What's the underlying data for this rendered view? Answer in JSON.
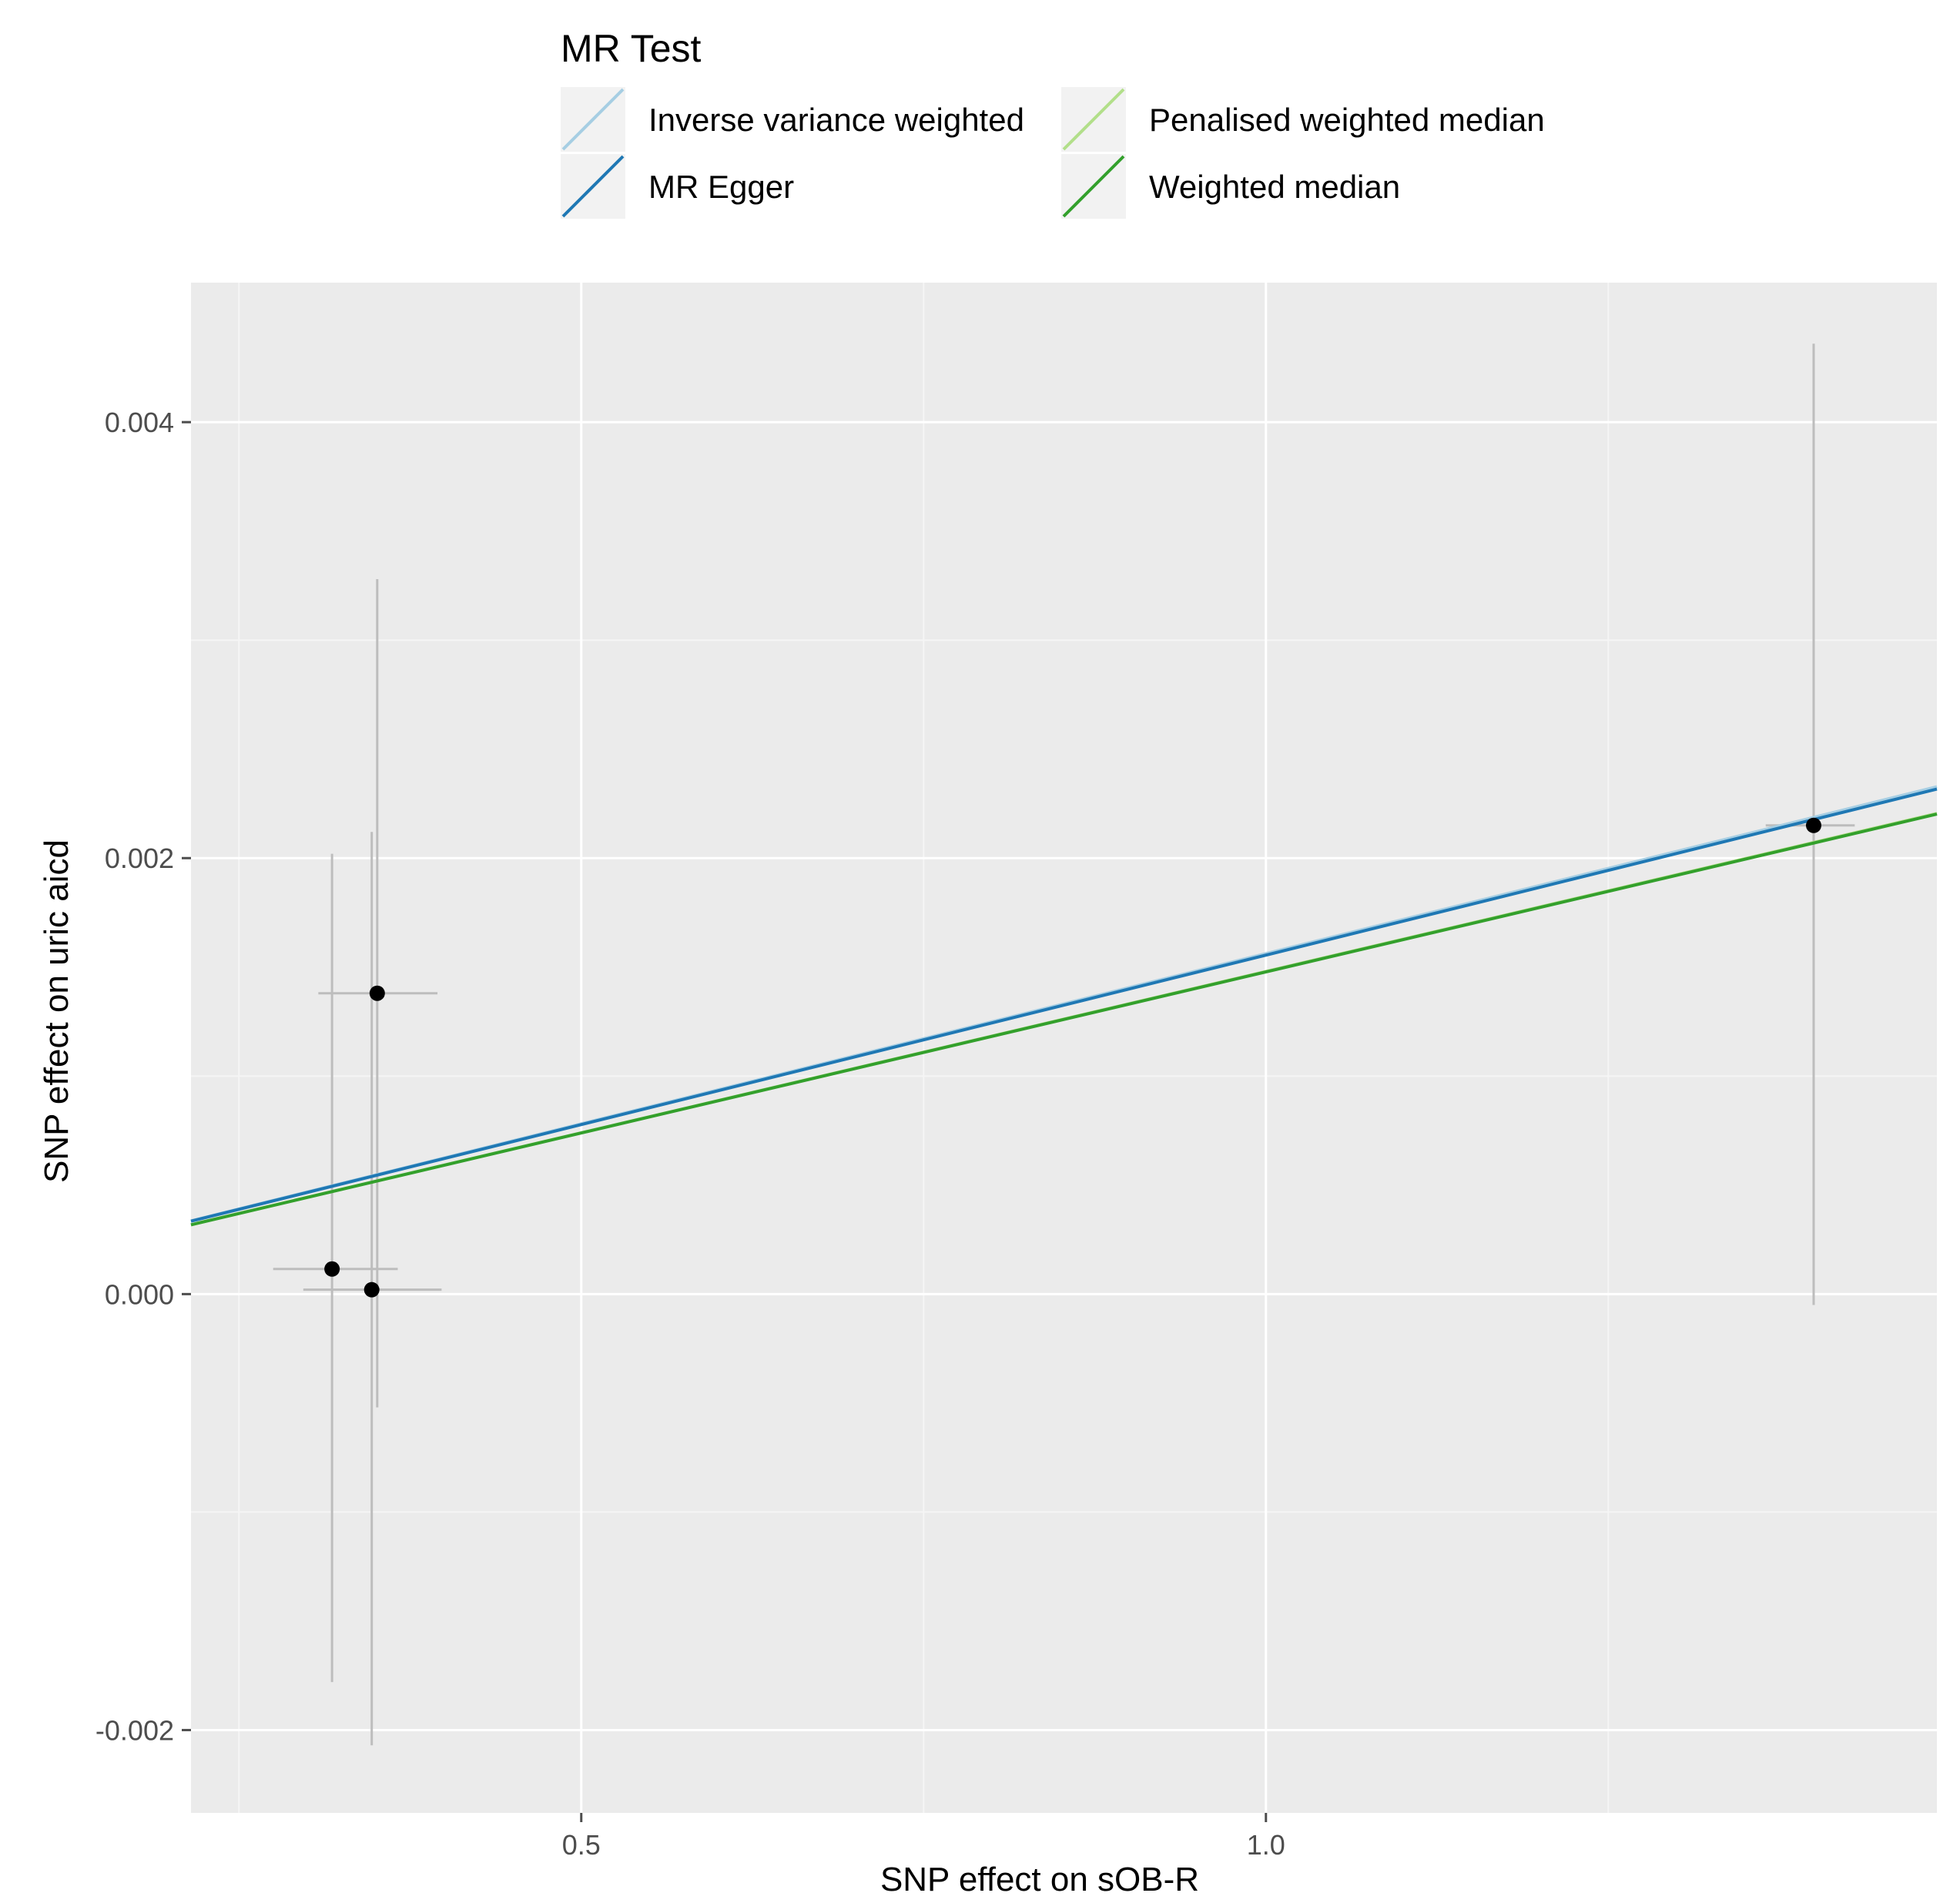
{
  "chart_data": {
    "type": "scatter",
    "title": "",
    "xlabel": "SNP effect  on sOB-R",
    "ylabel": "SNP effect on uric aicd",
    "xlim": [
      0.215,
      1.49
    ],
    "ylim": [
      -0.00238,
      0.00464
    ],
    "x_ticks": [
      0.5,
      1.0
    ],
    "x_tick_labels": [
      "0.5",
      "1.0"
    ],
    "y_ticks": [
      -0.002,
      0.0,
      0.002,
      0.004
    ],
    "y_tick_labels": [
      "-0.002",
      "0.000",
      "0.002",
      "0.004"
    ],
    "grid": true,
    "legend": {
      "title": "MR Test",
      "position": "top",
      "entries": [
        {
          "name": "Inverse variance weighted",
          "color": "#a6cee3"
        },
        {
          "name": "Penalised weighted median",
          "color": "#b2df8a"
        },
        {
          "name": "MR Egger",
          "color": "#1f78b4"
        },
        {
          "name": "Weighted median",
          "color": "#33a02c"
        }
      ]
    },
    "points": [
      {
        "x": 0.318,
        "y": 0.000115,
        "x_low": 0.275,
        "x_high": 0.366,
        "y_low": -0.00178,
        "y_high": 0.00202
      },
      {
        "x": 0.347,
        "y": 2e-05,
        "x_low": 0.297,
        "x_high": 0.398,
        "y_low": -0.00207,
        "y_high": 0.00212
      },
      {
        "x": 0.351,
        "y": 0.00138,
        "x_low": 0.308,
        "x_high": 0.395,
        "y_low": -0.00052,
        "y_high": 0.00328
      },
      {
        "x": 1.4,
        "y": 0.00215,
        "x_low": 1.365,
        "x_high": 1.43,
        "y_low": -5e-05,
        "y_high": 0.00436
      }
    ],
    "series": [
      {
        "name": "Inverse variance weighted",
        "type": "line",
        "intercept": 0.0,
        "slope": 0.001562,
        "color": "#a6cee3"
      },
      {
        "name": "MR Egger",
        "type": "line",
        "intercept": 0.0,
        "slope": 0.001555,
        "color": "#1f78b4"
      },
      {
        "name": "Penalised weighted median",
        "type": "line",
        "intercept": 0.0,
        "slope": 0.00148,
        "color": "#b2df8a"
      },
      {
        "name": "Weighted median",
        "type": "line",
        "intercept": 0.0,
        "slope": 0.001478,
        "color": "#33a02c"
      }
    ],
    "colors": {
      "panel_background": "#ebebeb",
      "grid_major": "#ffffff",
      "grid_minor": "#f5f5f5",
      "errorbar": "#bdbdbd",
      "point": "#000000",
      "legend_key_background": "#f2f2f2"
    }
  }
}
